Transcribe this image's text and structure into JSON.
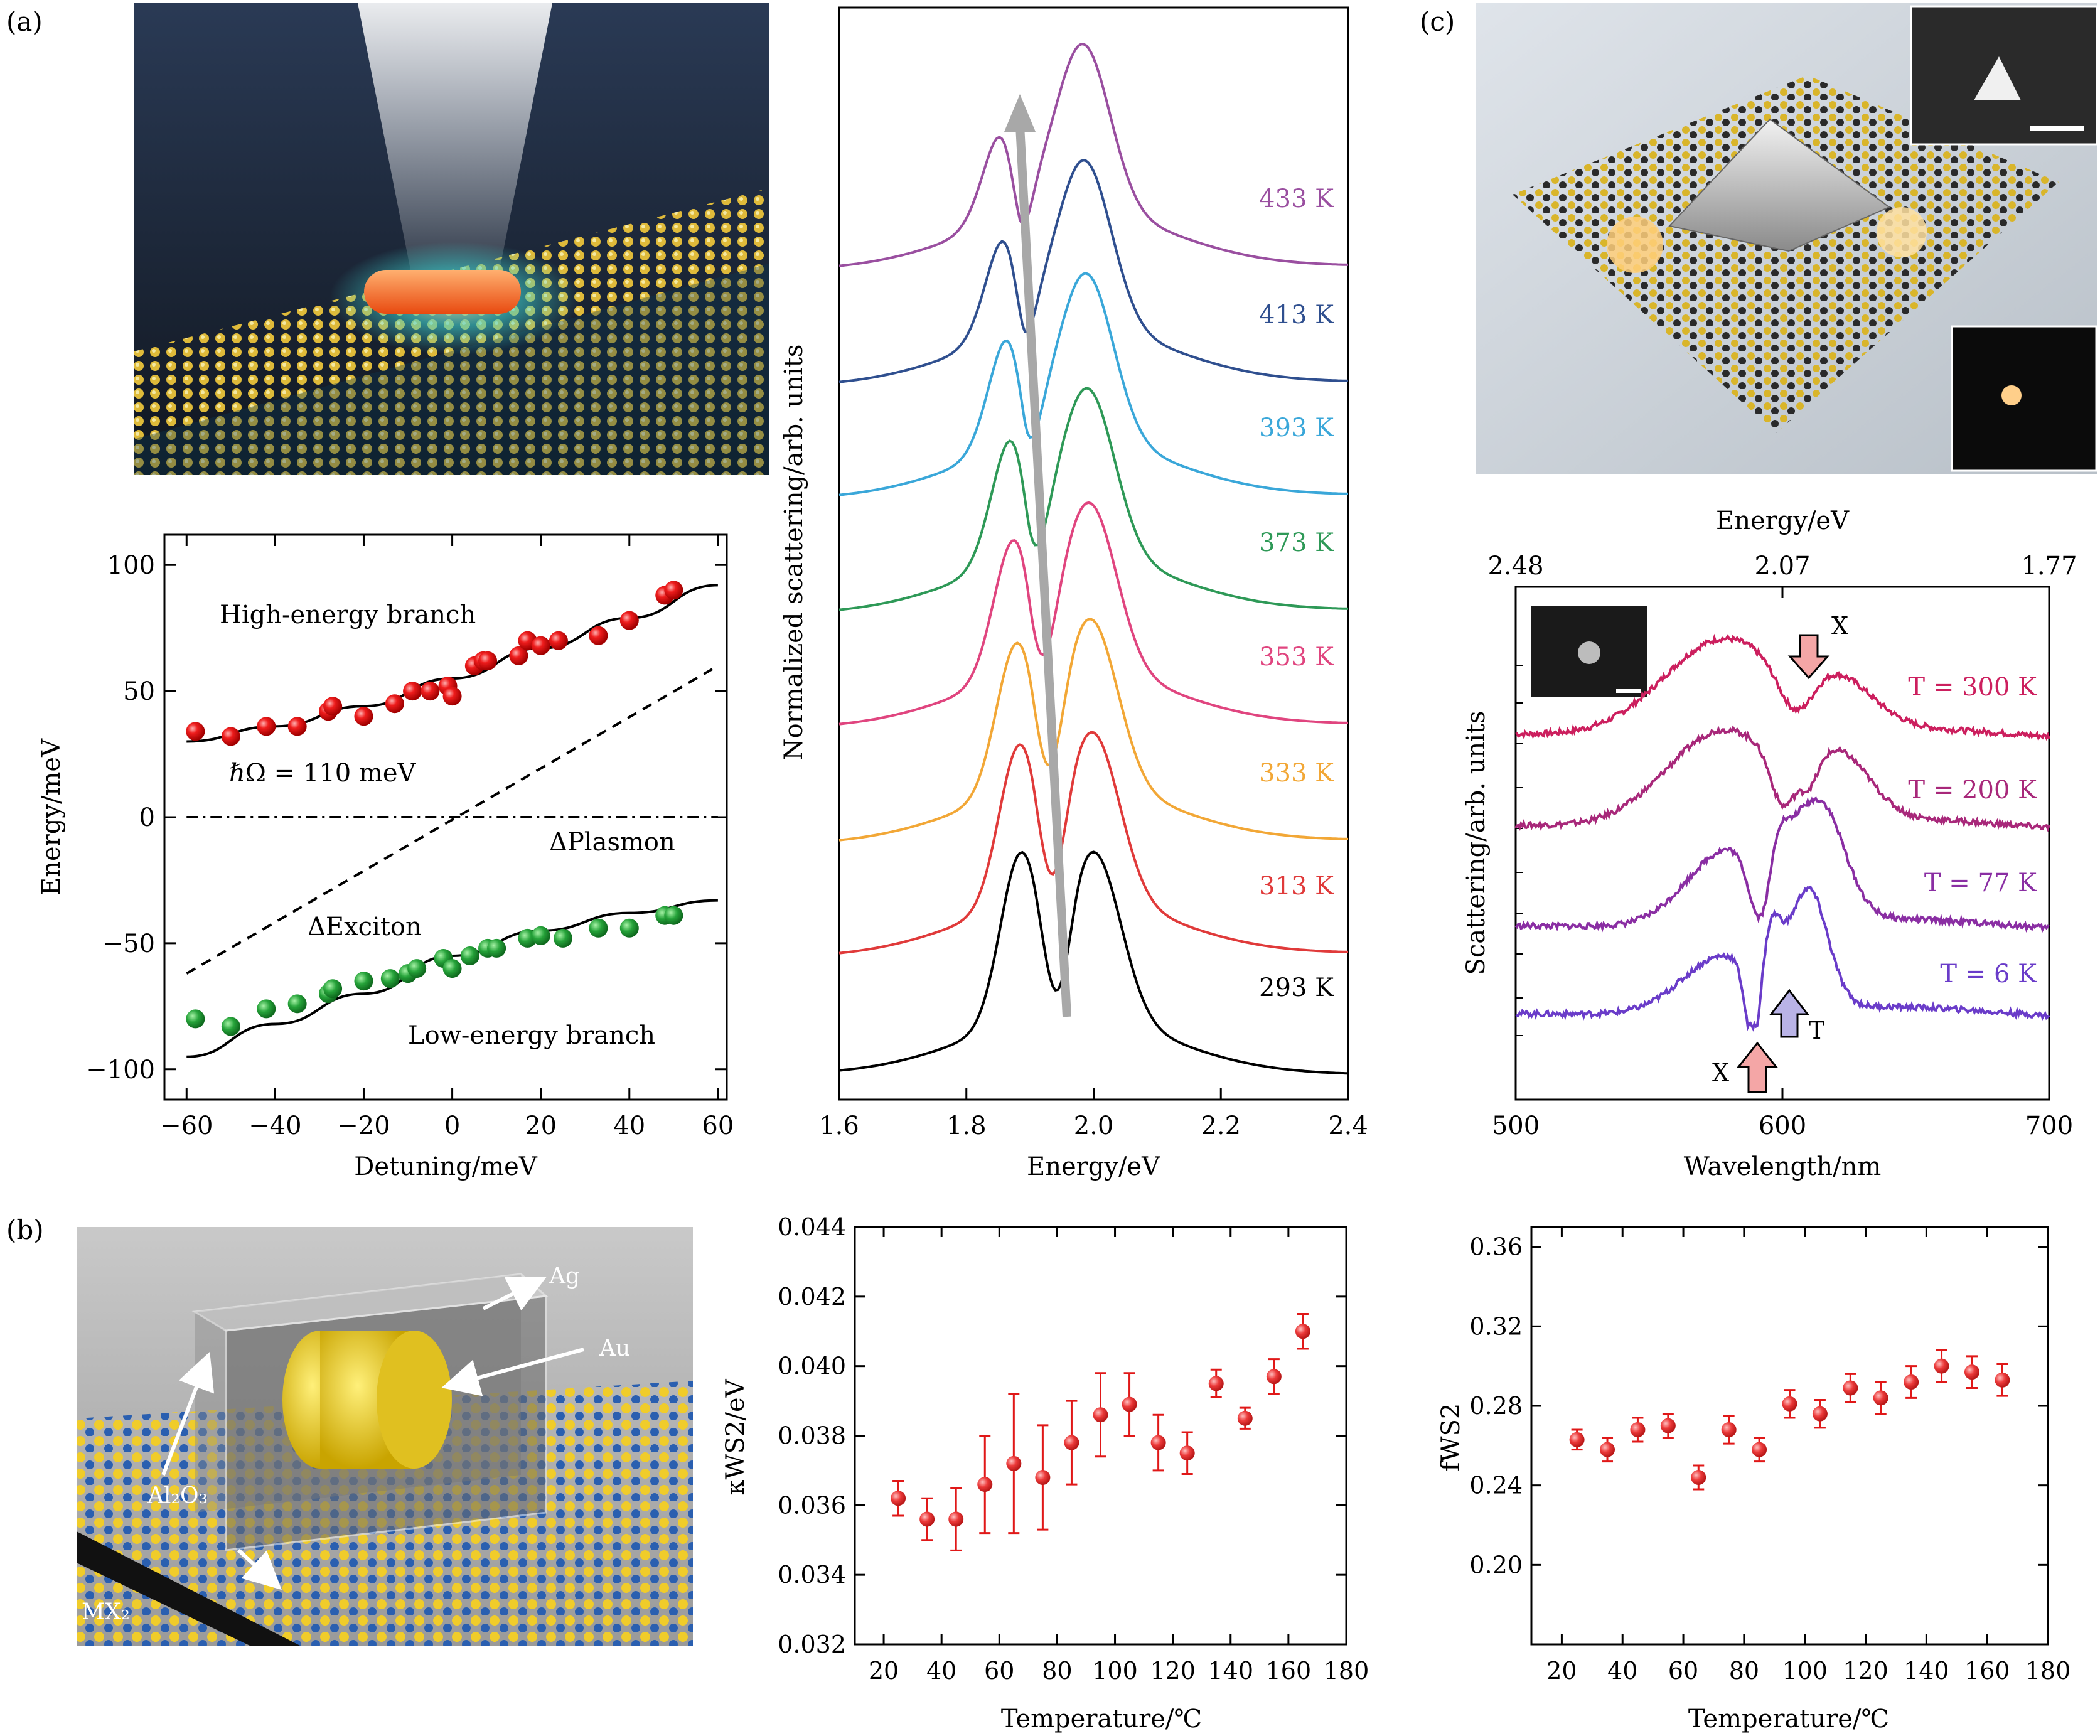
{
  "panel_labels": {
    "a": "(a)",
    "b": "(b)",
    "c": "(c)"
  },
  "illustrations": {
    "a_top": {
      "description_icon": "plasmonic-nanorod-on-monolayer"
    },
    "b_left": {
      "labels": {
        "ag": "Ag",
        "au": "Au",
        "al2o3": "Al₂O₃",
        "mx2": "MX₂"
      }
    },
    "c_top": {
      "description_icon": "triangular-nanoprism-on-monolayer"
    }
  },
  "chart_data": [
    {
      "id": "a-dispersion",
      "type": "scatter",
      "xlabel": "Detuning/meV",
      "ylabel": "Energy/meV",
      "xlim": [
        -65,
        62
      ],
      "ylim": [
        -112,
        112
      ],
      "xticks": [
        -60,
        -40,
        -20,
        0,
        20,
        40,
        60
      ],
      "xtick_labels": [
        "−60",
        "−40",
        "−20",
        "0",
        "20",
        "40",
        "60"
      ],
      "yticks": [
        -100,
        -50,
        0,
        50,
        100
      ],
      "ytick_labels": [
        "−100",
        "−50",
        "0",
        "50",
        "100"
      ],
      "annotations": {
        "high": "High-energy branch",
        "low": "Low-energy branch",
        "rabi": "ℏΩ = 110 meV",
        "plasmon": "ΔPlasmon",
        "exciton": "ΔExciton"
      },
      "series": [
        {
          "name": "High-energy branch",
          "color": "#e8383d",
          "x": [
            -58,
            -50,
            -42,
            -35,
            -28,
            -27,
            -20,
            -13,
            -9,
            -5,
            -1,
            0,
            5,
            7,
            8,
            15,
            17,
            20,
            24,
            33,
            40,
            48,
            50
          ],
          "y": [
            34,
            32,
            36,
            36,
            42,
            44,
            40,
            45,
            50,
            50,
            52,
            48,
            60,
            62,
            62,
            64,
            70,
            68,
            70,
            72,
            78,
            88,
            90
          ]
        },
        {
          "name": "Low-energy branch",
          "color": "#1f9a3a",
          "x": [
            -58,
            -50,
            -42,
            -35,
            -28,
            -27,
            -20,
            -14,
            -10,
            -8,
            -2,
            0,
            4,
            8,
            10,
            17,
            20,
            25,
            33,
            40,
            48,
            50
          ],
          "y": [
            -80,
            -83,
            -76,
            -74,
            -70,
            -68,
            -65,
            -64,
            -62,
            -60,
            -56,
            -60,
            -55,
            -52,
            -52,
            -48,
            -47,
            -48,
            -44,
            -44,
            -39,
            -39
          ]
        }
      ],
      "lines": {
        "high_fit": {
          "x": [
            -60,
            -40,
            -20,
            0,
            20,
            40,
            60
          ],
          "y": [
            30,
            36,
            44,
            55,
            67,
            79,
            92
          ]
        },
        "low_fit": {
          "x": [
            -60,
            -40,
            -20,
            0,
            20,
            40,
            60
          ],
          "y": [
            -95,
            -82,
            -70,
            -55,
            -45,
            -38,
            -33
          ]
        },
        "exciton": {
          "x": [
            -60,
            60
          ],
          "y": [
            -62,
            60
          ]
        },
        "plasmon": {
          "x": [
            -60,
            60
          ],
          "y": [
            0,
            0
          ]
        }
      }
    },
    {
      "id": "a-spectra",
      "type": "line",
      "xlabel": "Energy/eV",
      "ylabel": "Normalized scattering/arb. units",
      "xlim": [
        1.6,
        2.4
      ],
      "xticks": [
        1.6,
        1.8,
        2.0,
        2.2,
        2.4
      ],
      "xtick_labels": [
        "1.6",
        "1.8",
        "2.0",
        "2.2",
        "2.4"
      ],
      "series": [
        {
          "name": "293 K",
          "color": "#000000",
          "low_peak": 1.885,
          "high_peak": 2.0,
          "dip": 1.942
        },
        {
          "name": "313 K",
          "color": "#e03a3a",
          "low_peak": 1.883,
          "high_peak": 1.998,
          "dip": 1.935
        },
        {
          "name": "333 K",
          "color": "#f2a736",
          "low_peak": 1.879,
          "high_peak": 1.995,
          "dip": 1.93
        },
        {
          "name": "353 K",
          "color": "#e0457f",
          "low_peak": 1.875,
          "high_peak": 1.993,
          "dip": 1.92
        },
        {
          "name": "373 K",
          "color": "#2e9957",
          "low_peak": 1.872,
          "high_peak": 1.99,
          "dip": 1.91
        },
        {
          "name": "393 K",
          "color": "#3aa7d9",
          "low_peak": 1.868,
          "high_peak": 1.988,
          "dip": 1.902
        },
        {
          "name": "413 K",
          "color": "#2f4f8f",
          "low_peak": 1.864,
          "high_peak": 1.985,
          "dip": 1.895
        },
        {
          "name": "433 K",
          "color": "#9a4fa0",
          "low_peak": 1.86,
          "high_peak": 1.983,
          "dip": 1.89
        }
      ]
    },
    {
      "id": "c-spectra",
      "type": "line",
      "xlabel": "Wavelength/nm",
      "x2label": "Energy/eV",
      "ylabel": "Scattering/arb. units",
      "xlim": [
        500,
        700
      ],
      "xticks": [
        500,
        600,
        700
      ],
      "xtick_labels": [
        "500",
        "600",
        "700"
      ],
      "x2tick_labels": [
        "2.48",
        "2.07",
        "1.77"
      ],
      "markers": {
        "x_label": "X",
        "t_label": "T"
      },
      "series": [
        {
          "name": "T = 300 K",
          "color": "#cc1f5e"
        },
        {
          "name": "T = 200 K",
          "color": "#a8287a"
        },
        {
          "name": "T = 77 K",
          "color": "#8a2ea3"
        },
        {
          "name": "T = 6 K",
          "color": "#6a3cc9"
        }
      ]
    },
    {
      "id": "b-kappa",
      "type": "scatter",
      "xlabel": "Temperature/℃",
      "ylabel": "κWS2/eV",
      "xlim": [
        10,
        180
      ],
      "ylim": [
        0.032,
        0.044
      ],
      "xticks": [
        20,
        40,
        60,
        80,
        100,
        120,
        140,
        160,
        180
      ],
      "yticks": [
        0.032,
        0.034,
        0.036,
        0.038,
        0.04,
        0.042,
        0.044
      ],
      "ytick_labels": [
        "0.032",
        "0.034",
        "0.036",
        "0.038",
        "0.040",
        "0.042",
        "0.044"
      ],
      "x": [
        25,
        35,
        45,
        55,
        65,
        75,
        85,
        95,
        105,
        115,
        125,
        135,
        145,
        155,
        165
      ],
      "y": [
        0.0362,
        0.0356,
        0.0356,
        0.0366,
        0.0372,
        0.0368,
        0.0378,
        0.0386,
        0.0389,
        0.0378,
        0.0375,
        0.0395,
        0.0385,
        0.0397,
        0.041
      ],
      "err": [
        0.0005,
        0.0006,
        0.0009,
        0.0014,
        0.002,
        0.0015,
        0.0012,
        0.0012,
        0.0009,
        0.0008,
        0.0006,
        0.0004,
        0.0003,
        0.0005,
        0.0005
      ]
    },
    {
      "id": "b-f",
      "type": "scatter",
      "xlabel": "Temperature/℃",
      "ylabel": "fWS2",
      "xlim": [
        10,
        180
      ],
      "ylim": [
        0.16,
        0.37
      ],
      "xticks": [
        20,
        40,
        60,
        80,
        100,
        120,
        140,
        160,
        180
      ],
      "yticks": [
        0.2,
        0.24,
        0.28,
        0.32,
        0.36
      ],
      "ytick_labels": [
        "0.20",
        "0.24",
        "0.28",
        "0.32",
        "0.36"
      ],
      "x": [
        25,
        35,
        45,
        55,
        65,
        75,
        85,
        95,
        105,
        115,
        125,
        135,
        145,
        155,
        165
      ],
      "y": [
        0.263,
        0.258,
        0.268,
        0.27,
        0.244,
        0.268,
        0.258,
        0.281,
        0.276,
        0.289,
        0.284,
        0.292,
        0.3,
        0.297,
        0.293
      ],
      "err": [
        0.005,
        0.006,
        0.006,
        0.006,
        0.006,
        0.007,
        0.006,
        0.007,
        0.007,
        0.007,
        0.008,
        0.008,
        0.008,
        0.008,
        0.008
      ]
    }
  ]
}
